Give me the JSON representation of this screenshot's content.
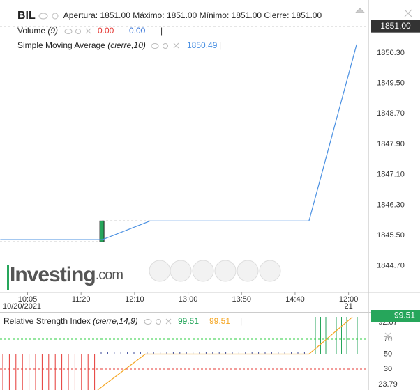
{
  "header": {
    "symbol": "BIL",
    "fields": [
      {
        "label": "Apertura:",
        "value": "1851.00"
      },
      {
        "label": "Máximo:",
        "value": "1851.00"
      },
      {
        "label": "Mínimo:",
        "value": "1851.00"
      },
      {
        "label": "Cierre:",
        "value": "1851.00"
      }
    ]
  },
  "watermark": {
    "brand": "Investing",
    "suffix": ".com"
  },
  "chart_data": [
    {
      "type": "line",
      "volume": {
        "name": "Volume",
        "params": "(9)",
        "values": [
          0,
          0
        ],
        "value_labels": [
          "0.00",
          "0.00"
        ],
        "colors": [
          "#e53935",
          "#2f6fd6"
        ]
      },
      "series": [
        {
          "name": "Simple Moving Average",
          "params": "(cierre,10)",
          "color": "#4a90e2",
          "last_value": 1850.49,
          "x": [
            -0.51,
            1.4,
            2.29,
            5.26,
            6.15
          ],
          "values": [
            1845.39,
            1845.39,
            1845.88,
            1845.88,
            1850.52
          ]
        }
      ],
      "candle": {
        "x": 1.39,
        "open": 1845.33,
        "close": 1845.88,
        "color": "#26a65b"
      },
      "last_price": 1851,
      "last_price_label": "1851.00",
      "xlim": [
        -0.515,
        6.37
      ],
      "ylim": [
        1844.0,
        1851.69
      ],
      "yticks": [
        {
          "value": 1844.7,
          "label": "1844.70"
        },
        {
          "value": 1845.5,
          "label": "1845.50"
        },
        {
          "value": 1846.3,
          "label": "1846.30"
        },
        {
          "value": 1847.1,
          "label": "1847.10"
        },
        {
          "value": 1847.9,
          "label": "1847.90"
        },
        {
          "value": 1848.7,
          "label": "1848.70"
        },
        {
          "value": 1849.5,
          "label": "1849.50"
        },
        {
          "value": 1850.3,
          "label": "1850.30"
        }
      ],
      "xticks": [
        {
          "value": 0,
          "label": "10:05"
        },
        {
          "value": 1,
          "label": "11:20"
        },
        {
          "value": 2,
          "label": "12:10"
        },
        {
          "value": 3,
          "label": "13:00"
        },
        {
          "value": 4,
          "label": "13:50"
        },
        {
          "value": 5,
          "label": "14:40"
        },
        {
          "value": 6,
          "label": "12:00"
        }
      ],
      "xtick_sublabels": [
        "10/20/2021",
        null,
        null,
        null,
        null,
        null,
        "21"
      ]
    },
    {
      "type": "line",
      "series": [
        {
          "name": "Relative Strength Index",
          "params": "(cierre,14,9)",
          "color": "#f5a623",
          "x": [
            1.31,
            2.2,
            5.26,
            6.07
          ],
          "values": [
            2.1,
            50,
            50,
            99.51
          ]
        }
      ],
      "legend_values": [
        99.51,
        99.51
      ],
      "legend_colors": [
        "#26a65b",
        "#f5a623"
      ],
      "last_value": 99.51,
      "xlim": [
        -0.515,
        6.37
      ],
      "ylim": [
        2.1,
        103.5
      ],
      "yticks": [
        92.07,
        70,
        50,
        30
      ],
      "min_label": "23.79",
      "levels": [
        {
          "value": 70,
          "color": "#2ecc40"
        },
        {
          "value": 50,
          "color": "#3b4a9a"
        },
        {
          "value": 30,
          "color": "#e53935"
        }
      ]
    }
  ]
}
